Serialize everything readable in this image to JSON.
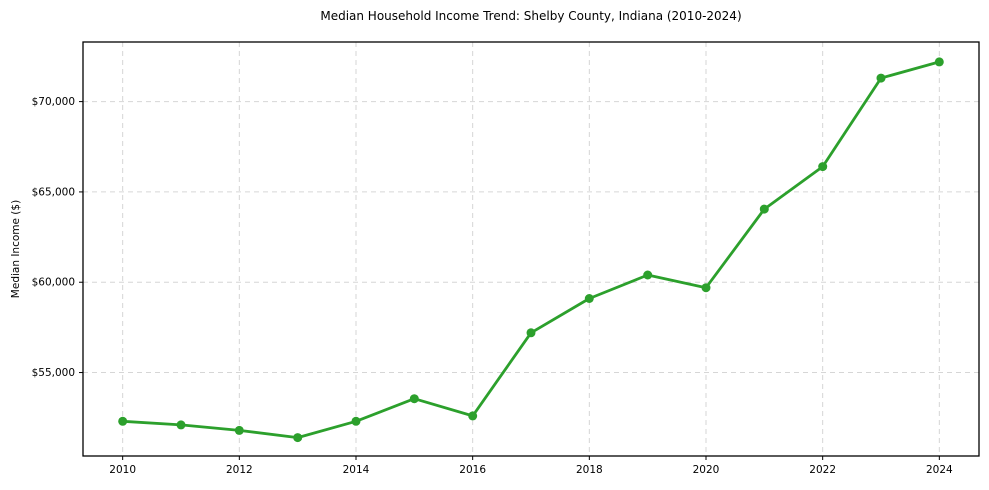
{
  "page": {
    "background_color": "#ffffff"
  },
  "chart_data": {
    "type": "line",
    "title": "Median Household Income Trend: Shelby County, Indiana (2010-2024)",
    "xlabel": "",
    "ylabel": "Median Income ($)",
    "x": [
      2010,
      2011,
      2012,
      2013,
      2014,
      2015,
      2016,
      2017,
      2018,
      2019,
      2020,
      2021,
      2022,
      2023,
      2024
    ],
    "series": [
      {
        "name": "Median Household Income",
        "color": "#2ca02c",
        "marker": "circle",
        "values": [
          52300,
          52100,
          51800,
          51400,
          52300,
          53550,
          52600,
          57200,
          59100,
          60400,
          59700,
          64050,
          66400,
          71300,
          72200
        ]
      }
    ],
    "xlim": [
      2009.32,
      2024.68
    ],
    "ylim": [
      50380,
      73300
    ],
    "xticks": [
      2010,
      2012,
      2014,
      2016,
      2018,
      2020,
      2022,
      2024
    ],
    "xtick_labels": [
      "2010",
      "2012",
      "2014",
      "2016",
      "2018",
      "2020",
      "2022",
      "2024"
    ],
    "yticks": [
      55000,
      60000,
      65000,
      70000
    ],
    "ytick_labels": [
      "$55,000",
      "$60,000",
      "$65,000",
      "$70,000"
    ],
    "grid": "both, dashed light gray",
    "legend": "none",
    "colors": {
      "line": "#2ca02c",
      "grid": "#d6d6d6",
      "spine": "#000000",
      "text": "#000000"
    }
  }
}
